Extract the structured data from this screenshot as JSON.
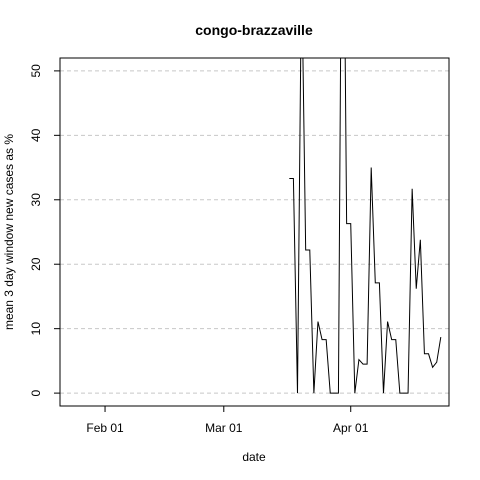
{
  "chart_data": {
    "type": "line",
    "title": "congo-brazzaville",
    "xlabel": "date",
    "ylabel": "mean  3  day window new cases as %",
    "x": [
      "Mar 17",
      "Mar 18",
      "Mar 19",
      "Mar 20",
      "Mar 21",
      "Mar 22",
      "Mar 23",
      "Mar 24",
      "Mar 25",
      "Mar 26",
      "Mar 27",
      "Mar 28",
      "Mar 29",
      "Mar 30",
      "Mar 31",
      "Apr 01",
      "Apr 02",
      "Apr 03",
      "Apr 04",
      "Apr 05",
      "Apr 06",
      "Apr 07",
      "Apr 08",
      "Apr 09",
      "Apr 10",
      "Apr 11",
      "Apr 12",
      "Apr 13",
      "Apr 14",
      "Apr 15",
      "Apr 16",
      "Apr 17",
      "Apr 18",
      "Apr 19",
      "Apr 20",
      "Apr 21",
      "Apr 22",
      "Apr 23"
    ],
    "series": [
      {
        "color": "#000000",
        "values": [
          33.3,
          33.3,
          0,
          66.7,
          22.2,
          22.2,
          0,
          11.1,
          8.3,
          8.3,
          0,
          0,
          0,
          100,
          26.3,
          26.3,
          0,
          5.2,
          4.5,
          4.5,
          35,
          17.1,
          17.1,
          0,
          11.1,
          8.3,
          8.3,
          0,
          0,
          0,
          31.7,
          16.2,
          23.8,
          6.1,
          6.1,
          4,
          4.8,
          8.7
        ]
      }
    ],
    "xlim": [
      "Jan 21",
      "Apr 25"
    ],
    "xticks": [
      "Feb 01",
      "Mar 01",
      "Apr 01"
    ],
    "ylim": [
      -2,
      52
    ],
    "yticks": [
      0,
      10,
      20,
      30,
      40,
      50
    ],
    "grid": true
  }
}
